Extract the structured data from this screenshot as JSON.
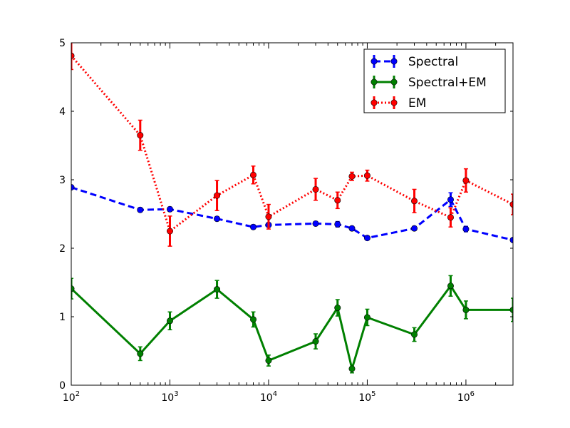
{
  "chart_data": {
    "type": "line",
    "xscale": "log",
    "xlim": [
      100,
      3000000
    ],
    "ylim": [
      0,
      5
    ],
    "title": "",
    "xlabel": "",
    "ylabel": "",
    "grid": false,
    "legend_position": "upper right",
    "x_tick_labels": [
      {
        "base": "10",
        "exp": "2",
        "value": 100
      },
      {
        "base": "10",
        "exp": "3",
        "value": 1000
      },
      {
        "base": "10",
        "exp": "4",
        "value": 10000
      },
      {
        "base": "10",
        "exp": "5",
        "value": 100000
      },
      {
        "base": "10",
        "exp": "6",
        "value": 1000000
      }
    ],
    "y_tick_labels": [
      "0",
      "1",
      "2",
      "3",
      "4",
      "5"
    ],
    "series": [
      {
        "name": "Spectral",
        "color": "#0000ff",
        "linestyle": "dashed",
        "x": [
          100,
          500,
          1000,
          3000,
          7000,
          10000,
          30000,
          50000,
          70000,
          100000,
          300000,
          700000,
          1000000,
          3000000
        ],
        "y": [
          2.89,
          2.56,
          2.57,
          2.43,
          2.31,
          2.34,
          2.36,
          2.35,
          2.29,
          2.15,
          2.29,
          2.71,
          2.28,
          2.12
        ],
        "err": [
          0.02,
          0.03,
          0.03,
          0.02,
          0.03,
          0.03,
          0.03,
          0.04,
          0.03,
          0.02,
          0.03,
          0.1,
          0.04,
          0.02
        ]
      },
      {
        "name": "Spectral+EM",
        "color": "#008000",
        "linestyle": "solid",
        "x": [
          100,
          500,
          1000,
          3000,
          7000,
          10000,
          30000,
          50000,
          70000,
          100000,
          300000,
          700000,
          1000000,
          3000000
        ],
        "y": [
          1.41,
          0.46,
          0.94,
          1.4,
          0.96,
          0.36,
          0.64,
          1.13,
          0.24,
          0.99,
          0.74,
          1.45,
          1.1,
          1.1
        ],
        "err": [
          0.15,
          0.1,
          0.13,
          0.13,
          0.11,
          0.08,
          0.11,
          0.12,
          0.06,
          0.12,
          0.1,
          0.15,
          0.13,
          0.17
        ]
      },
      {
        "name": "EM",
        "color": "#ff0000",
        "linestyle": "dotted",
        "x": [
          100,
          500,
          1000,
          3000,
          7000,
          10000,
          30000,
          50000,
          70000,
          100000,
          300000,
          700000,
          1000000,
          3000000
        ],
        "y": [
          4.81,
          3.65,
          2.25,
          2.77,
          3.07,
          2.46,
          2.86,
          2.7,
          3.05,
          3.06,
          2.69,
          2.45,
          2.99,
          2.64
        ],
        "err": [
          0.2,
          0.22,
          0.22,
          0.22,
          0.13,
          0.18,
          0.16,
          0.12,
          0.06,
          0.08,
          0.17,
          0.14,
          0.17,
          0.15
        ]
      }
    ]
  }
}
